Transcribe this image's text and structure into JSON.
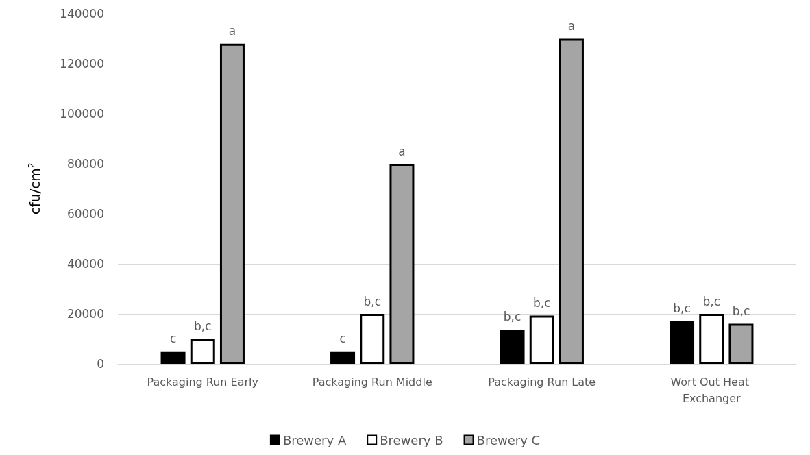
{
  "chart_data": {
    "type": "bar",
    "ylabel": "cfu/cm$^{2}$",
    "categories": [
      "Packaging Run Early",
      "Packaging Run Middle",
      "Packaging Run Late",
      "Wort Out Heat Exchanger"
    ],
    "series": [
      {
        "name": "Brewery A",
        "color": "#000000",
        "values": [
          5000,
          5000,
          13700,
          17000
        ],
        "value_labels": [
          "c",
          "c",
          "b,c",
          "b,c"
        ]
      },
      {
        "name": "Brewery B",
        "color": "#ffffff",
        "values": [
          10000,
          20000,
          19300,
          20000
        ],
        "value_labels": [
          "b,c",
          "b,c",
          "b,c",
          "b,c"
        ]
      },
      {
        "name": "Brewery C",
        "color": "#a5a5a5",
        "values": [
          128000,
          80000,
          130000,
          16000
        ],
        "value_labels": [
          "a",
          "a",
          "a",
          "b,c"
        ]
      }
    ],
    "ylim": [
      0,
      140000
    ],
    "yticks": [
      0,
      20000,
      40000,
      60000,
      80000,
      100000,
      120000,
      140000
    ],
    "grid": "y",
    "legend": "bottom"
  }
}
